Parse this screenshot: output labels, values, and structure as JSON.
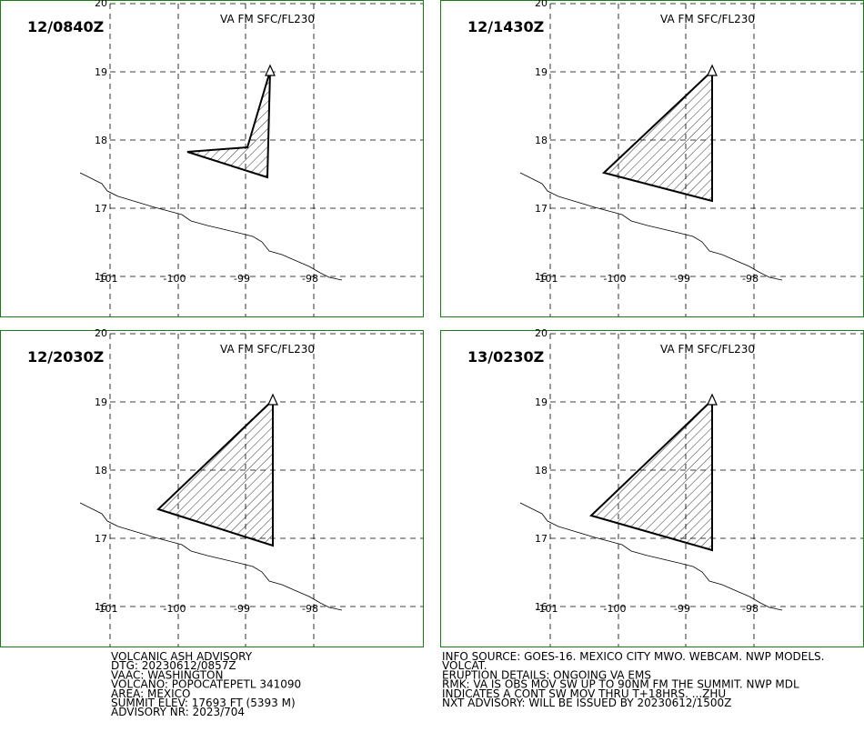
{
  "panels": [
    {
      "time": "12/0840Z",
      "level": "VA FM SFC/FL230",
      "lat_ticks": [
        "20",
        "19",
        "18",
        "17",
        "16"
      ],
      "lon_ticks": [
        "-101",
        "-100",
        "-99",
        "-98"
      ]
    },
    {
      "time": "12/1430Z",
      "level": "VA FM SFC/FL230",
      "lat_ticks": [
        "20",
        "19",
        "18",
        "17",
        "16"
      ],
      "lon_ticks": [
        "-101",
        "-100",
        "-99",
        "-98"
      ]
    },
    {
      "time": "12/2030Z",
      "level": "VA FM SFC/FL230",
      "lat_ticks": [
        "20",
        "19",
        "18",
        "17",
        "16"
      ],
      "lon_ticks": [
        "-101",
        "-100",
        "-99",
        "-98"
      ]
    },
    {
      "time": "13/0230Z",
      "level": "VA FM SFC/FL230",
      "lat_ticks": [
        "20",
        "19",
        "18",
        "17",
        "16"
      ],
      "lon_ticks": [
        "-101",
        "-100",
        "-99",
        "-98"
      ]
    }
  ],
  "advisory": {
    "left": [
      "VOLCANIC ASH ADVISORY",
      "DTG: 20230612/0857Z",
      "VAAC: WASHINGTON",
      "VOLCANO: POPOCATEPETL 341090",
      "AREA: MEXICO",
      "SUMMIT ELEV: 17693 FT (5393 M)",
      "ADVISORY NR: 2023/704"
    ],
    "right": [
      "INFO SOURCE: GOES-16. MEXICO CITY MWO. WEBCAM. NWP MODELS.",
      "VOLCAT.",
      "ERUPTION DETAILS: ONGOING VA EMS",
      "RMK: VA IS OBS MOV SW UP TO 90NM FM THE SUMMIT. NWP MDL",
      "INDICATES A CONT SW MOV THRU T+18HRS. ...ZHU",
      "NXT ADVISORY: WILL BE ISSUED BY 20230612/1500Z"
    ]
  }
}
